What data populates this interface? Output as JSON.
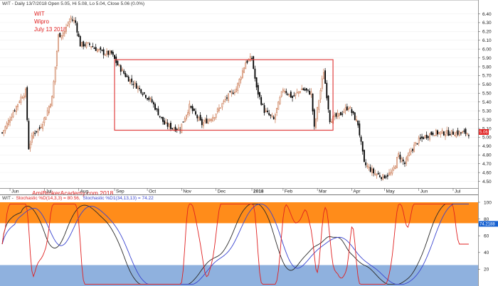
{
  "header": {
    "price_line": "WIT - Daily 13/7/2018 Open 5.05, Hi 5.08, Lo 5.04, Close 5.06 (0.0%)",
    "indicator_prefix": "WIT -",
    "indicator_k": "Stochastic %D(14,3,3) = 80.56,",
    "indicator_d": "Stochastic %D1(34,13,13) = 74.22"
  },
  "annotations": {
    "ticker": "WIT",
    "company": "Wipro",
    "date": "July 13 2018",
    "watermark": "AmiBrokerAcademy.com  2018"
  },
  "labels": {
    "price_badge": "5.06",
    "stoch_badge": "74.2188"
  },
  "colors": {
    "up_candle": "#c8734a",
    "down_candle": "#000000",
    "box": "#e04040",
    "overbought_band": "#ff8c1a",
    "oversold_band": "#8fb1de",
    "fast_line": "#e02020",
    "slow_line": "#2a2a2a",
    "d1_line": "#3a45d0",
    "price_badge_bg": "#e02020",
    "stoch_badge_bg": "#1560d0"
  },
  "chart_data": [
    {
      "type": "candlestick",
      "title": "WIT - Daily 13/7/2018 Open 5.05, Hi 5.08, Lo 5.04, Close 5.06 (0.0%)",
      "y_ticks": [
        "6.40",
        "6.30",
        "6.20",
        "6.10",
        "6.00",
        "5.90",
        "5.80",
        "5.70",
        "5.60",
        "5.50",
        "5.40",
        "5.30",
        "5.20",
        "5.10",
        "5.00",
        "4.90",
        "4.80",
        "4.70",
        "4.60",
        "4.50"
      ],
      "ylim": [
        4.44,
        6.46
      ],
      "x_ticks": [
        "Jun",
        "Jul",
        "Aug",
        "Sep",
        "Oct",
        "Nov",
        "Dec",
        "2018",
        "Feb",
        "Mar",
        "Apr",
        "May",
        "Jun",
        "Jul"
      ],
      "x_tick_positions": [
        5,
        27,
        49,
        72,
        93,
        115,
        137,
        160,
        180,
        202,
        224,
        245,
        267,
        289
      ],
      "n_bars": 300,
      "anchors": [
        [
          0,
          5.05
        ],
        [
          6,
          5.25
        ],
        [
          12,
          5.45
        ],
        [
          15,
          5.52
        ],
        [
          17,
          4.88
        ],
        [
          20,
          5.05
        ],
        [
          24,
          5.1
        ],
        [
          28,
          5.25
        ],
        [
          32,
          5.45
        ],
        [
          36,
          6.15
        ],
        [
          40,
          6.2
        ],
        [
          44,
          6.35
        ],
        [
          47,
          6.3
        ],
        [
          50,
          6.05
        ],
        [
          56,
          6.05
        ],
        [
          62,
          5.98
        ],
        [
          66,
          5.95
        ],
        [
          70,
          5.95
        ],
        [
          74,
          5.82
        ],
        [
          80,
          5.68
        ],
        [
          88,
          5.55
        ],
        [
          96,
          5.4
        ],
        [
          104,
          5.15
        ],
        [
          110,
          5.1
        ],
        [
          114,
          5.1
        ],
        [
          120,
          5.35
        ],
        [
          128,
          5.15
        ],
        [
          136,
          5.25
        ],
        [
          144,
          5.45
        ],
        [
          150,
          5.55
        ],
        [
          156,
          5.85
        ],
        [
          160,
          5.9
        ],
        [
          163,
          5.55
        ],
        [
          168,
          5.3
        ],
        [
          174,
          5.2
        ],
        [
          180,
          5.55
        ],
        [
          186,
          5.45
        ],
        [
          192,
          5.55
        ],
        [
          198,
          5.5
        ],
        [
          200,
          5.1
        ],
        [
          206,
          5.75
        ],
        [
          210,
          5.2
        ],
        [
          216,
          5.25
        ],
        [
          222,
          5.35
        ],
        [
          228,
          5.15
        ],
        [
          232,
          4.7
        ],
        [
          238,
          4.6
        ],
        [
          244,
          4.55
        ],
        [
          250,
          4.6
        ],
        [
          254,
          4.8
        ],
        [
          258,
          4.7
        ],
        [
          262,
          4.85
        ],
        [
          266,
          4.95
        ],
        [
          270,
          5.0
        ],
        [
          276,
          5.05
        ]
      ],
      "box": {
        "x_bars": [
          72,
          212
        ],
        "y_values": [
          5.08,
          5.88
        ]
      },
      "last_close": 5.06
    },
    {
      "type": "line",
      "title": "Stochastic",
      "series": [
        {
          "name": "Stochastic %D(14,3,3)",
          "last": 80.56
        },
        {
          "name": "Stochastic %D1(34,13,13)",
          "last": 74.22
        }
      ],
      "y_ticks": [
        100,
        80,
        60,
        40,
        20
      ],
      "ylim": [
        0,
        100
      ],
      "bands": {
        "overbought": [
          75,
          100
        ],
        "oversold": [
          0,
          25
        ]
      }
    }
  ]
}
